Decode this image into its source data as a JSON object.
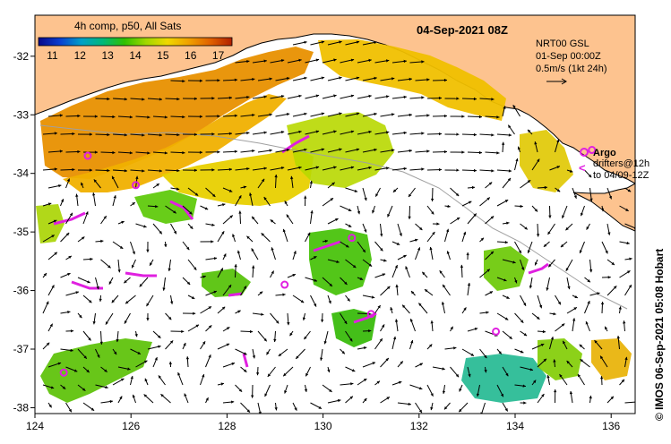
{
  "colorbar": {
    "title": "4h comp, p50, All Sats",
    "ticks": [
      "11",
      "12",
      "13",
      "14",
      "15",
      "16",
      "17"
    ],
    "min": 10.5,
    "max": 17.5,
    "colors": [
      "#08088a",
      "#0a3fd0",
      "#00a0c8",
      "#00b878",
      "#30c000",
      "#a0d800",
      "#f0d800",
      "#f0a000",
      "#e06000",
      "#b02000"
    ]
  },
  "map": {
    "date_label": "04-Sep-2021 08Z",
    "current_product": "NRT00 GSL",
    "current_date": "01-Sep 00:00Z",
    "scale_label": "0.5m/s (1kt 24h)",
    "legend_argo": "Argo",
    "legend_drifters": "drifters@12h",
    "legend_drifters_to": "to 04/09-12Z",
    "credit": "© IMOS 06-Sep-2021 05:08 Hobart",
    "lon_ticks": [
      "124",
      "126",
      "128",
      "130",
      "132",
      "134",
      "136"
    ],
    "lat_ticks": [
      "-32",
      "-33",
      "-34",
      "-35",
      "-36",
      "-37",
      "-38"
    ],
    "lon_range": [
      124,
      136.5
    ],
    "lat_range": [
      -38.1,
      -31.3
    ],
    "land_color": "#fdc38f",
    "argo_color": "#e020e0",
    "argo_floats": [
      {
        "lon": 125.1,
        "lat": -33.7
      },
      {
        "lon": 126.1,
        "lat": -34.2
      },
      {
        "lon": 129.2,
        "lat": -35.9
      },
      {
        "lon": 130.6,
        "lat": -35.1
      },
      {
        "lon": 131.0,
        "lat": -36.4
      },
      {
        "lon": 133.6,
        "lat": -36.7
      },
      {
        "lon": 135.6,
        "lat": -33.6
      },
      {
        "lon": 124.6,
        "lat": -37.4
      }
    ]
  }
}
